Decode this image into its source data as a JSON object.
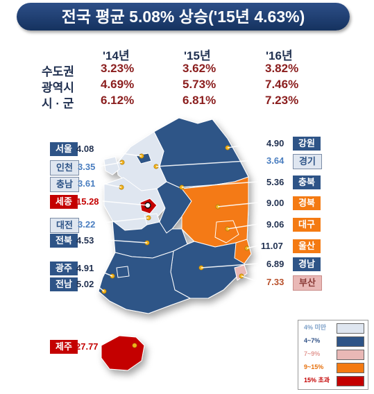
{
  "title": "전국 평균 5.08% 상승('15년 4.63%)",
  "table": {
    "years": [
      "'14년",
      "'15년",
      "'16년"
    ],
    "rows": [
      {
        "label": "수도권",
        "values": [
          "3.23%",
          "3.62%",
          "3.82%"
        ]
      },
      {
        "label": "광역시",
        "values": [
          "4.69%",
          "5.73%",
          "7.46%"
        ]
      },
      {
        "label": "시 · 군",
        "values": [
          "6.12%",
          "6.81%",
          "7.23%"
        ]
      }
    ]
  },
  "regions_left": [
    {
      "name": "서울",
      "value": "4.08",
      "category": "4~7%"
    },
    {
      "name": "인천",
      "value": "3.35",
      "category": "4% 미만"
    },
    {
      "name": "충남",
      "value": "3.61",
      "category": "4% 미만"
    },
    {
      "name": "세종",
      "value": "15.28",
      "category": "15% 초과"
    },
    {
      "name": "대전",
      "value": "3.22",
      "category": "4% 미만"
    },
    {
      "name": "전북",
      "value": "4.53",
      "category": "4~7%"
    },
    {
      "name": "광주",
      "value": "4.91",
      "category": "4~7%"
    },
    {
      "name": "전남",
      "value": "5.02",
      "category": "4~7%"
    },
    {
      "name": "제주",
      "value": "27.77",
      "category": "15% 초과"
    }
  ],
  "regions_right": [
    {
      "name": "강원",
      "value": "4.90",
      "category": "4~7%"
    },
    {
      "name": "경기",
      "value": "3.64",
      "category": "4% 미만"
    },
    {
      "name": "충북",
      "value": "5.36",
      "category": "4~7%"
    },
    {
      "name": "경북",
      "value": "9.00",
      "category": "9~15%"
    },
    {
      "name": "대구",
      "value": "9.06",
      "category": "9~15%"
    },
    {
      "name": "울산",
      "value": "11.07",
      "category": "9~15%"
    },
    {
      "name": "경남",
      "value": "6.89",
      "category": "4~7%"
    },
    {
      "name": "부산",
      "value": "7.33",
      "category": "7~9%"
    }
  ],
  "legend": [
    {
      "label": "4% 미만",
      "color": "#dfe6f0",
      "text_color": "#7da0c8"
    },
    {
      "label": "4~7%",
      "color": "#2e5487",
      "text_color": "#2e4f85"
    },
    {
      "label": "7~9%",
      "color": "#e9b8b6",
      "text_color": "#e39b96"
    },
    {
      "label": "9~15%",
      "color": "#f47a12",
      "text_color": "#e6700c"
    },
    {
      "label": "15% 초과",
      "color": "#c40000",
      "text_color": "#c40000"
    }
  ]
}
